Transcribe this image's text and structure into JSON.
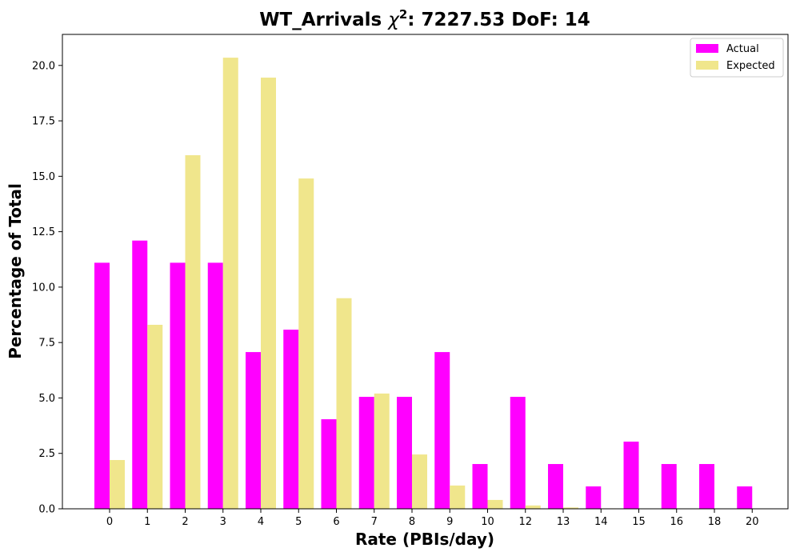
{
  "chart_data": {
    "type": "bar",
    "title_main": "WT_Arrivals ",
    "title_symbol": "χ",
    "title_superscript": "2",
    "title_rest": ": 7227.53 DoF: 14",
    "xlabel": "Rate (PBIs/day)",
    "ylabel": "Percentage of Total",
    "categories": [
      "0",
      "1",
      "2",
      "3",
      "4",
      "5",
      "6",
      "7",
      "8",
      "9",
      "10",
      "12",
      "13",
      "14",
      "15",
      "16",
      "18",
      "20"
    ],
    "series": [
      {
        "name": "Actual",
        "color": "#ff00ff",
        "values": [
          11.1,
          12.1,
          11.1,
          11.1,
          7.07,
          8.08,
          4.04,
          5.05,
          5.05,
          7.07,
          2.02,
          5.05,
          2.02,
          1.01,
          3.03,
          2.02,
          2.02,
          1.01
        ]
      },
      {
        "name": "Expected",
        "color": "#f0e68c",
        "values": [
          2.2,
          8.3,
          15.95,
          20.35,
          19.45,
          14.9,
          9.5,
          5.2,
          2.45,
          1.05,
          0.4,
          0.15,
          0.06,
          0.02,
          0,
          0,
          0,
          0
        ]
      }
    ],
    "ylim": [
      0,
      21.4
    ],
    "yticks": [
      "0.0",
      "2.5",
      "5.0",
      "7.5",
      "10.0",
      "12.5",
      "15.0",
      "17.5",
      "20.0"
    ],
    "legend_position": "top-right",
    "grid": false
  }
}
